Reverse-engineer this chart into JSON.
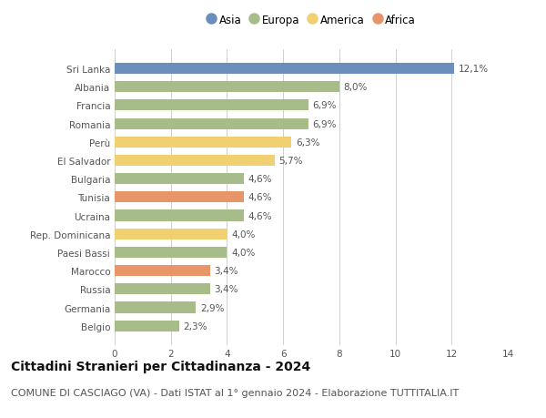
{
  "categories": [
    "Sri Lanka",
    "Albania",
    "Francia",
    "Romania",
    "Perù",
    "El Salvador",
    "Bulgaria",
    "Tunisia",
    "Ucraina",
    "Rep. Dominicana",
    "Paesi Bassi",
    "Marocco",
    "Russia",
    "Germania",
    "Belgio"
  ],
  "values": [
    12.1,
    8.0,
    6.9,
    6.9,
    6.3,
    5.7,
    4.6,
    4.6,
    4.6,
    4.0,
    4.0,
    3.4,
    3.4,
    2.9,
    2.3
  ],
  "labels": [
    "12,1%",
    "8,0%",
    "6,9%",
    "6,9%",
    "6,3%",
    "5,7%",
    "4,6%",
    "4,6%",
    "4,6%",
    "4,0%",
    "4,0%",
    "3,4%",
    "3,4%",
    "2,9%",
    "2,3%"
  ],
  "continents": [
    "Asia",
    "Europa",
    "Europa",
    "Europa",
    "America",
    "America",
    "Europa",
    "Africa",
    "Europa",
    "America",
    "Europa",
    "Africa",
    "Europa",
    "Europa",
    "Europa"
  ],
  "colors": {
    "Asia": "#6b8fbc",
    "Europa": "#a8bc8a",
    "America": "#f0d070",
    "Africa": "#e8956a"
  },
  "legend_order": [
    "Asia",
    "Europa",
    "America",
    "Africa"
  ],
  "xlim": [
    0,
    14
  ],
  "xticks": [
    0,
    2,
    4,
    6,
    8,
    10,
    12,
    14
  ],
  "title": "Cittadini Stranieri per Cittadinanza - 2024",
  "subtitle": "COMUNE DI CASCIAGO (VA) - Dati ISTAT al 1° gennaio 2024 - Elaborazione TUTTITALIA.IT",
  "title_fontsize": 10,
  "subtitle_fontsize": 8,
  "bg_color": "#ffffff",
  "grid_color": "#d0d0d0",
  "bar_height": 0.6,
  "label_fontsize": 7.5,
  "tick_fontsize": 7.5,
  "legend_fontsize": 8.5
}
